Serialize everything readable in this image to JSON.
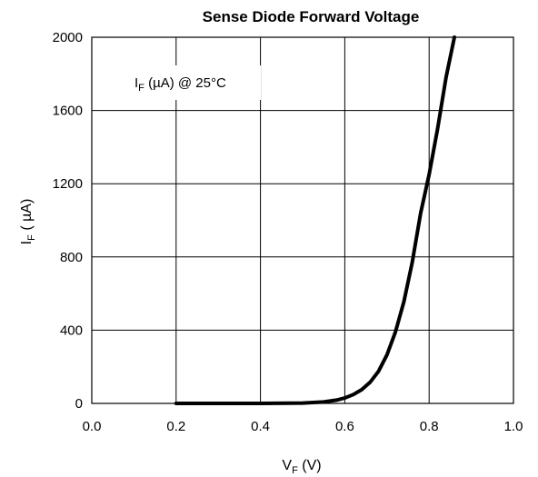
{
  "chart_data": {
    "type": "line",
    "title": "Sense Diode Forward Voltage",
    "xlabel": {
      "main": "V",
      "sub": "F",
      "rest": " (V)"
    },
    "ylabel": {
      "main": "I",
      "sub": "F",
      "rest": " ( µA)"
    },
    "annotation": {
      "main": "I",
      "sub": "F",
      "rest": " (µA) @ 25°C"
    },
    "xlim": [
      0.0,
      1.0
    ],
    "ylim": [
      0,
      2000
    ],
    "xticks": [
      "0.0",
      "0.2",
      "0.4",
      "0.6",
      "0.8",
      "1.0"
    ],
    "yticks": [
      "0",
      "400",
      "800",
      "1200",
      "1600",
      "2000"
    ],
    "xtick_values": [
      0.0,
      0.2,
      0.4,
      0.6,
      0.8,
      1.0
    ],
    "ytick_values": [
      0,
      400,
      800,
      1200,
      1600,
      2000
    ],
    "grid": true,
    "series": [
      {
        "color": "#000000",
        "x": [
          0.2,
          0.3,
          0.4,
          0.5,
          0.55,
          0.58,
          0.6,
          0.62,
          0.64,
          0.66,
          0.68,
          0.7,
          0.72,
          0.74,
          0.76,
          0.78,
          0.8,
          0.82,
          0.84,
          0.86
        ],
        "y": [
          0,
          0,
          0,
          2,
          8,
          18,
          30,
          48,
          75,
          115,
          175,
          265,
          390,
          555,
          770,
          1040,
          1250,
          1500,
          1780,
          2000
        ]
      }
    ]
  }
}
